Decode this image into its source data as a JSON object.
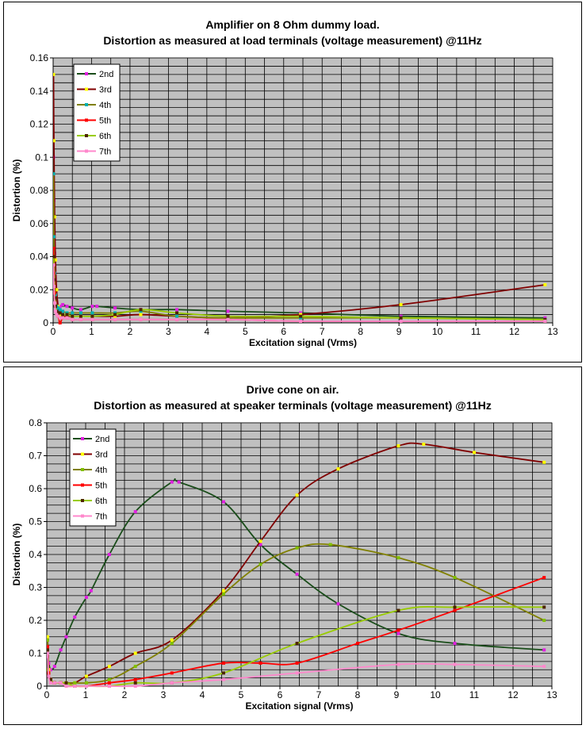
{
  "chart_data": [
    {
      "type": "line",
      "title": "Amplifier on 8 Ohm dummy load.",
      "subtitle": "Distortion as measured at load terminals (voltage measurement) @11Hz",
      "xlabel": "Excitation signal (Vrms)",
      "ylabel": "Distortion (%)",
      "xlim": [
        0,
        13
      ],
      "ylim": [
        0,
        0.16
      ],
      "xticks": [
        "0",
        "1",
        "2",
        "3",
        "4",
        "5",
        "6",
        "7",
        "8",
        "9",
        "10",
        "11",
        "12",
        "13"
      ],
      "yticks": [
        "0",
        "0.02",
        "0.04",
        "0.06",
        "0.08",
        "0.1",
        "0.12",
        "0.14",
        "0.16"
      ],
      "grid": true,
      "legend_position": "top-left",
      "series": [
        {
          "name": "2nd",
          "color": "#1a4d1a",
          "marker_color": "#e020e0",
          "x": [
            0.01,
            0.02,
            0.04,
            0.06,
            0.09,
            0.13,
            0.18,
            0.25,
            0.36,
            0.5,
            0.72,
            1.02,
            1.14,
            1.61,
            2.28,
            3.22,
            4.55,
            6.44,
            9.05,
            12.8
          ],
          "y": [
            0.1,
            0.074,
            0.042,
            0.022,
            0.012,
            0.01,
            0.01,
            0.011,
            0.01,
            0.009,
            0.008,
            0.01,
            0.01,
            0.009,
            0.008,
            0.008,
            0.007,
            0.006,
            0.004,
            0.003
          ]
        },
        {
          "name": "3rd",
          "color": "#800000",
          "marker_color": "#ffff00",
          "x": [
            0.01,
            0.02,
            0.04,
            0.06,
            0.09,
            0.13,
            0.18,
            0.25,
            0.36,
            0.5,
            0.72,
            1.02,
            1.61,
            2.28,
            3.22,
            4.55,
            6.44,
            9.05,
            12.8
          ],
          "y": [
            0.15,
            0.11,
            0.064,
            0.038,
            0.02,
            0.01,
            0.005,
            0.004,
            0.004,
            0.004,
            0.004,
            0.004,
            0.004,
            0.005,
            0.004,
            0.003,
            0.005,
            0.011,
            0.023
          ]
        },
        {
          "name": "4th",
          "color": "#808000",
          "marker_color": "#00b0b0",
          "x": [
            0.01,
            0.02,
            0.04,
            0.06,
            0.09,
            0.13,
            0.18,
            0.25,
            0.36,
            0.5,
            0.72,
            1.02,
            1.61,
            2.28,
            3.22,
            4.55,
            6.44,
            9.05,
            12.8
          ],
          "y": [
            0.09,
            0.052,
            0.03,
            0.017,
            0.01,
            0.009,
            0.008,
            0.007,
            0.006,
            0.006,
            0.006,
            0.006,
            0.006,
            0.007,
            0.004,
            0.003,
            0.003,
            0.003,
            0.002
          ]
        },
        {
          "name": "5th",
          "color": "#ff0000",
          "marker_color": "#ff0000",
          "x": [
            0.01,
            0.02,
            0.04,
            0.06,
            0.09,
            0.13,
            0.18,
            0.25,
            0.36,
            0.5,
            0.72,
            1.02,
            1.61,
            2.28,
            3.22,
            4.55,
            6.44,
            9.05,
            12.8
          ],
          "y": [
            0.045,
            0.03,
            0.018,
            0.01,
            0.006,
            0.004,
            0.0,
            0.003,
            0.003,
            0.002,
            0.002,
            0.002,
            0.002,
            0.002,
            0.002,
            0.002,
            0.001,
            0.001,
            0.001
          ]
        },
        {
          "name": "6th",
          "color": "#99cc00",
          "marker_color": "#4d2600",
          "x": [
            0.01,
            0.02,
            0.04,
            0.06,
            0.09,
            0.13,
            0.18,
            0.25,
            0.36,
            0.5,
            0.72,
            1.02,
            1.61,
            2.28,
            3.22,
            4.55,
            6.44,
            9.05,
            12.8
          ],
          "y": [
            0.04,
            0.026,
            0.015,
            0.01,
            0.007,
            0.006,
            0.006,
            0.005,
            0.005,
            0.004,
            0.004,
            0.004,
            0.005,
            0.008,
            0.006,
            0.004,
            0.004,
            0.003,
            0.002
          ]
        },
        {
          "name": "7th",
          "color": "#ff88cc",
          "marker_color": "#ff88cc",
          "x": [
            0.01,
            0.02,
            0.04,
            0.06,
            0.09,
            0.13,
            0.18,
            0.25,
            0.36,
            0.5,
            0.72,
            1.02,
            1.61,
            2.28,
            3.22,
            4.55,
            6.44,
            9.05,
            12.8
          ],
          "y": [
            0.035,
            0.022,
            0.012,
            0.007,
            0.005,
            0.004,
            0.003,
            0.003,
            0.003,
            0.002,
            0.002,
            0.002,
            0.002,
            0.002,
            0.002,
            0.002,
            0.001,
            0.001,
            0.001
          ]
        }
      ]
    },
    {
      "type": "line",
      "title": "Drive cone on air.",
      "subtitle": "Distortion as measured at speaker terminals (voltage measurement) @11Hz",
      "xlabel": "Excitation signal (Vrms)",
      "ylabel": "Distortion (%)",
      "xlim": [
        0,
        13
      ],
      "ylim": [
        0,
        0.8
      ],
      "xticks": [
        "0",
        "1",
        "2",
        "3",
        "4",
        "5",
        "6",
        "7",
        "8",
        "9",
        "10",
        "11",
        "12",
        "13"
      ],
      "yticks": [
        "0",
        "0.1",
        "0.2",
        "0.3",
        "0.4",
        "0.5",
        "0.6",
        "0.7",
        "0.8"
      ],
      "grid": true,
      "legend_position": "top-left",
      "series": [
        {
          "name": "2nd",
          "color": "#1a4d1a",
          "marker_color": "#e020e0",
          "x": [
            0.02,
            0.05,
            0.1,
            0.2,
            0.36,
            0.5,
            0.72,
            1.02,
            1.14,
            1.61,
            2.28,
            3.22,
            3.4,
            4.55,
            5.5,
            6.44,
            7.5,
            9.05,
            10.5,
            12.8
          ],
          "y": [
            0.09,
            0.07,
            0.05,
            0.06,
            0.11,
            0.15,
            0.21,
            0.27,
            0.29,
            0.4,
            0.53,
            0.62,
            0.62,
            0.56,
            0.43,
            0.34,
            0.25,
            0.16,
            0.13,
            0.11
          ]
        },
        {
          "name": "3rd",
          "color": "#800000",
          "marker_color": "#ffff00",
          "x": [
            0.02,
            0.05,
            0.1,
            0.2,
            0.36,
            0.5,
            0.72,
            1.02,
            1.61,
            2.28,
            3.22,
            4.55,
            5.5,
            6.44,
            7.5,
            9.05,
            9.7,
            11,
            12.8
          ],
          "y": [
            0.15,
            0.05,
            0.02,
            0.01,
            0.01,
            0.01,
            0.01,
            0.03,
            0.06,
            0.1,
            0.14,
            0.29,
            0.44,
            0.58,
            0.66,
            0.73,
            0.735,
            0.71,
            0.68
          ]
        },
        {
          "name": "4th",
          "color": "#808000",
          "marker_color": "#80c000",
          "x": [
            0.02,
            0.05,
            0.1,
            0.2,
            0.36,
            0.5,
            0.72,
            1.02,
            1.61,
            2.28,
            3.22,
            4.55,
            5.5,
            6.44,
            7.3,
            9.05,
            10.5,
            12.8
          ],
          "y": [
            0.14,
            0.04,
            0.02,
            0.01,
            0.01,
            0.01,
            0.01,
            0.01,
            0.02,
            0.06,
            0.13,
            0.28,
            0.37,
            0.42,
            0.43,
            0.39,
            0.33,
            0.2
          ]
        },
        {
          "name": "5th",
          "color": "#ff0000",
          "marker_color": "#ff0000",
          "x": [
            0.02,
            0.05,
            0.1,
            0.2,
            0.36,
            0.5,
            0.72,
            1.02,
            1.61,
            2.28,
            3.22,
            4.55,
            5.5,
            6.44,
            8,
            9.05,
            10.5,
            12.8
          ],
          "y": [
            0.12,
            0.04,
            0.02,
            0.01,
            0.01,
            0.0,
            0.0,
            0.0,
            0.01,
            0.02,
            0.04,
            0.07,
            0.07,
            0.07,
            0.13,
            0.17,
            0.23,
            0.33
          ]
        },
        {
          "name": "6th",
          "color": "#99cc00",
          "marker_color": "#4d2600",
          "x": [
            0.02,
            0.05,
            0.1,
            0.2,
            0.36,
            0.5,
            0.72,
            1.02,
            1.61,
            2.28,
            3.22,
            4.55,
            6.44,
            9.05,
            10.5,
            12.8
          ],
          "y": [
            0.11,
            0.03,
            0.02,
            0.01,
            0.01,
            0.01,
            0.0,
            0.0,
            0.0,
            0.01,
            0.01,
            0.04,
            0.13,
            0.23,
            0.24,
            0.24
          ]
        },
        {
          "name": "7th",
          "color": "#ff88cc",
          "marker_color": "#ff88cc",
          "x": [
            0.02,
            0.05,
            0.1,
            0.2,
            0.36,
            0.5,
            0.72,
            1.02,
            1.61,
            2.28,
            3.22,
            4.55,
            6.44,
            9.05,
            10.5,
            12.8
          ],
          "y": [
            0.1,
            0.03,
            0.01,
            0.01,
            0.01,
            0.0,
            0.0,
            0.0,
            0.0,
            0.0,
            0.01,
            0.02,
            0.04,
            0.066,
            0.066,
            0.06
          ]
        }
      ]
    }
  ]
}
